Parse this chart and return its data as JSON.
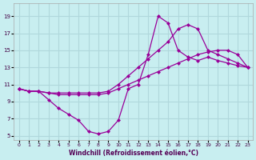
{
  "xlabel": "Windchill (Refroidissement éolien,°C)",
  "background_color": "#c8eef0",
  "grid_color": "#b0d8dc",
  "line_color": "#990099",
  "xlim": [
    -0.5,
    23.5
  ],
  "ylim": [
    4.5,
    20.5
  ],
  "yticks": [
    5,
    7,
    9,
    11,
    13,
    15,
    17,
    19
  ],
  "xticks": [
    0,
    1,
    2,
    3,
    4,
    5,
    6,
    7,
    8,
    9,
    10,
    11,
    12,
    13,
    14,
    15,
    16,
    17,
    18,
    19,
    20,
    21,
    22,
    23
  ],
  "line1_x": [
    0,
    1,
    2,
    3,
    4,
    5,
    6,
    7,
    8,
    9,
    10,
    11,
    12,
    13,
    14,
    15,
    16,
    17,
    18,
    19,
    20,
    21,
    22,
    23
  ],
  "line1_y": [
    10.5,
    10.2,
    10.2,
    9.2,
    8.2,
    7.5,
    6.8,
    5.5,
    5.2,
    5.5,
    6.8,
    10.5,
    11.0,
    14.5,
    19.0,
    18.2,
    15.0,
    14.2,
    13.8,
    14.2,
    13.8,
    13.5,
    13.2,
    13.0
  ],
  "line2_x": [
    0,
    1,
    2,
    3,
    4,
    5,
    6,
    7,
    8,
    9,
    10,
    11,
    12,
    13,
    14,
    15,
    16,
    17,
    18,
    19,
    20,
    21,
    22,
    23
  ],
  "line2_y": [
    10.5,
    10.2,
    10.2,
    10.0,
    10.0,
    10.0,
    10.0,
    10.0,
    10.0,
    10.2,
    11.0,
    12.0,
    13.0,
    14.0,
    15.0,
    16.0,
    17.5,
    18.0,
    17.5,
    15.0,
    14.5,
    14.0,
    13.5,
    13.0
  ],
  "line3_x": [
    0,
    1,
    2,
    3,
    4,
    5,
    6,
    7,
    8,
    9,
    10,
    11,
    12,
    13,
    14,
    15,
    16,
    17,
    18,
    19,
    20,
    21,
    22,
    23
  ],
  "line3_y": [
    10.5,
    10.2,
    10.2,
    10.0,
    9.8,
    9.8,
    9.8,
    9.8,
    9.8,
    10.0,
    10.5,
    11.0,
    11.5,
    12.0,
    12.5,
    13.0,
    13.5,
    14.0,
    14.5,
    14.8,
    15.0,
    15.0,
    14.5,
    13.0
  ]
}
